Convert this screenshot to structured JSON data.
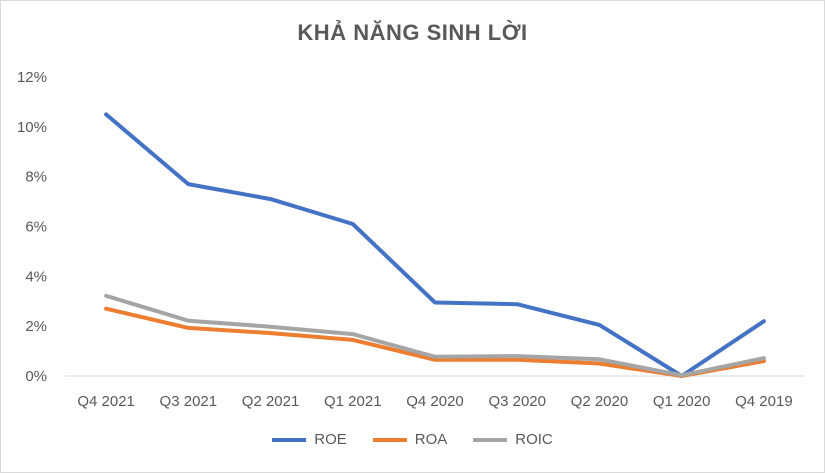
{
  "chart_data": {
    "type": "line",
    "title": "KHẢ NĂNG SINH LỜI",
    "categories": [
      "Q4 2021",
      "Q3 2021",
      "Q2 2021",
      "Q1 2021",
      "Q4 2020",
      "Q3 2020",
      "Q2 2020",
      "Q1 2020",
      "Q4 2019"
    ],
    "series": [
      {
        "name": "ROE",
        "color": "#4472c4",
        "values": [
          10.5,
          7.7,
          7.1,
          6.1,
          2.95,
          2.88,
          2.05,
          0.0,
          2.2
        ]
      },
      {
        "name": "ROA",
        "color": "#ed7d31",
        "values": [
          2.7,
          1.93,
          1.72,
          1.45,
          0.65,
          0.65,
          0.5,
          0.0,
          0.6
        ]
      },
      {
        "name": "ROIC",
        "color": "#a5a5a5",
        "values": [
          3.22,
          2.22,
          1.98,
          1.68,
          0.77,
          0.8,
          0.67,
          0.03,
          0.72
        ]
      }
    ],
    "yticks": [
      "0%",
      "2%",
      "4%",
      "6%",
      "8%",
      "10%",
      "12%"
    ],
    "ylim": [
      0,
      12
    ],
    "grid": false,
    "legend_position": "bottom"
  }
}
